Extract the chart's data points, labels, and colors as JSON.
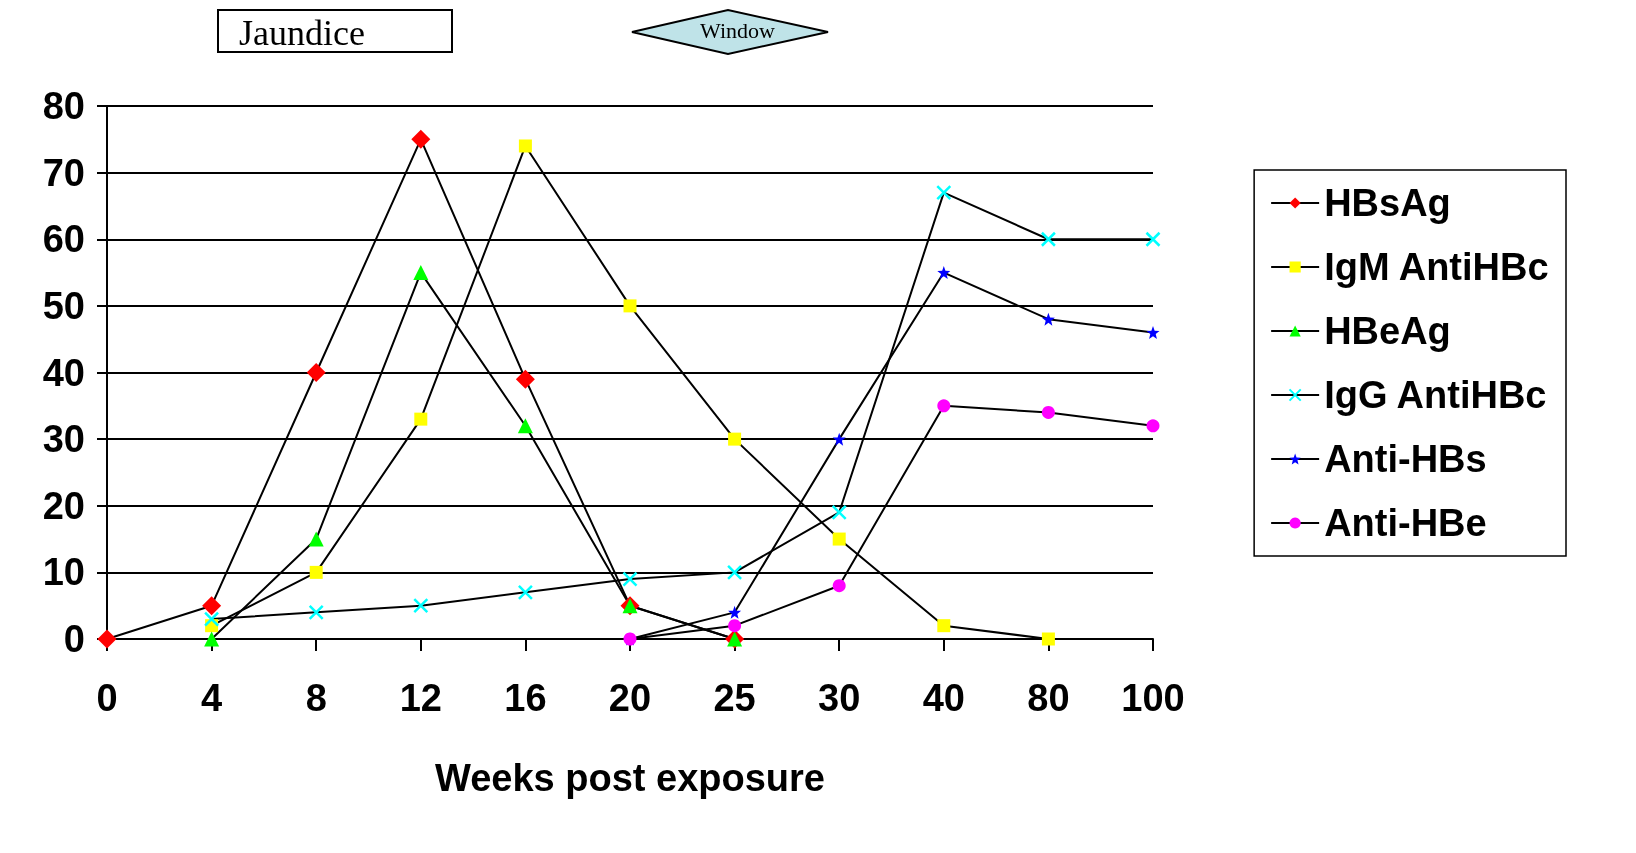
{
  "chart_data": {
    "type": "line",
    "xlabel": "Weeks post exposure",
    "categories": [
      "0",
      "4",
      "8",
      "12",
      "16",
      "20",
      "25",
      "30",
      "40",
      "80",
      "100"
    ],
    "series": [
      {
        "name": "HBsAg",
        "color": "#ff0000",
        "marker": "diamond",
        "values": [
          0,
          5,
          40,
          75,
          39,
          5,
          0,
          null,
          null,
          null,
          null
        ]
      },
      {
        "name": "IgM AntiHBc",
        "color": "#ffff00",
        "marker": "square",
        "values": [
          null,
          2,
          10,
          33,
          74,
          50,
          30,
          15,
          2,
          0,
          null
        ]
      },
      {
        "name": "HBeAg",
        "color": "#00ff00",
        "marker": "triangle",
        "values": [
          null,
          0,
          15,
          55,
          32,
          5,
          0,
          null,
          null,
          null,
          null
        ]
      },
      {
        "name": "IgG AntiHBc",
        "color": "#00ffff",
        "marker": "cross",
        "values": [
          null,
          3,
          4,
          5,
          7,
          9,
          10,
          19,
          67,
          60,
          60
        ]
      },
      {
        "name": "Anti-HBs",
        "color": "#0000ff",
        "marker": "star",
        "values": [
          null,
          null,
          null,
          null,
          null,
          0,
          4,
          30,
          55,
          48,
          46
        ]
      },
      {
        "name": "Anti-HBe",
        "color": "#ff00ff",
        "marker": "circle",
        "values": [
          null,
          null,
          null,
          null,
          null,
          0,
          2,
          8,
          35,
          34,
          32
        ]
      }
    ],
    "ylim": [
      0,
      80
    ],
    "yticks": [
      0,
      10,
      20,
      30,
      40,
      50,
      60,
      70,
      80
    ],
    "grid": "y",
    "legend": "right",
    "line_style": "solid",
    "annotations": [
      "Jaundice",
      "Window"
    ]
  }
}
